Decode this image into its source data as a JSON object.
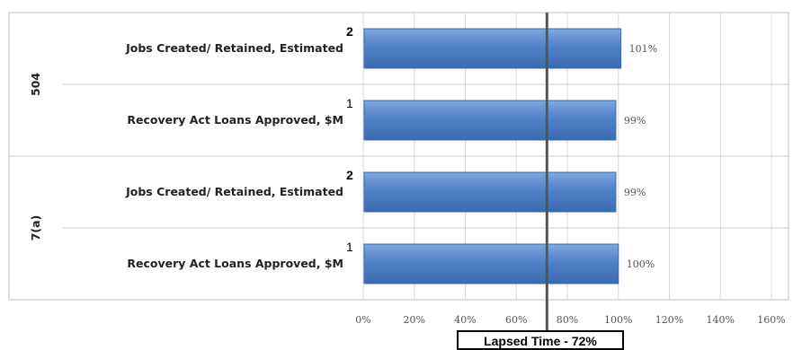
{
  "chart_data": {
    "type": "bar",
    "orientation": "horizontal",
    "groups": [
      {
        "name": "504",
        "categories": [
          {
            "label": "Jobs Created/ Retained, Estimated",
            "footnote": "2",
            "value": 101,
            "value_label": "101%"
          },
          {
            "label": "Recovery Act Loans Approved, $M",
            "footnote": "1",
            "value": 99,
            "value_label": "99%"
          }
        ]
      },
      {
        "name": "7(a)",
        "categories": [
          {
            "label": "Jobs Created/ Retained, Estimated",
            "footnote": "2",
            "value": 99,
            "value_label": "99%"
          },
          {
            "label": "Recovery Act Loans Approved, $M",
            "footnote": "1",
            "value": 100,
            "value_label": "100%"
          }
        ]
      }
    ],
    "xlim": [
      0,
      160
    ],
    "x_ticks": [
      "0%",
      "20%",
      "40%",
      "60%",
      "80%",
      "100%",
      "120%",
      "140%",
      "160%"
    ],
    "reference_line": {
      "value": 72,
      "label": "Lapsed Time - 72%"
    },
    "bar_color": "#4f81c7",
    "grid": true
  }
}
